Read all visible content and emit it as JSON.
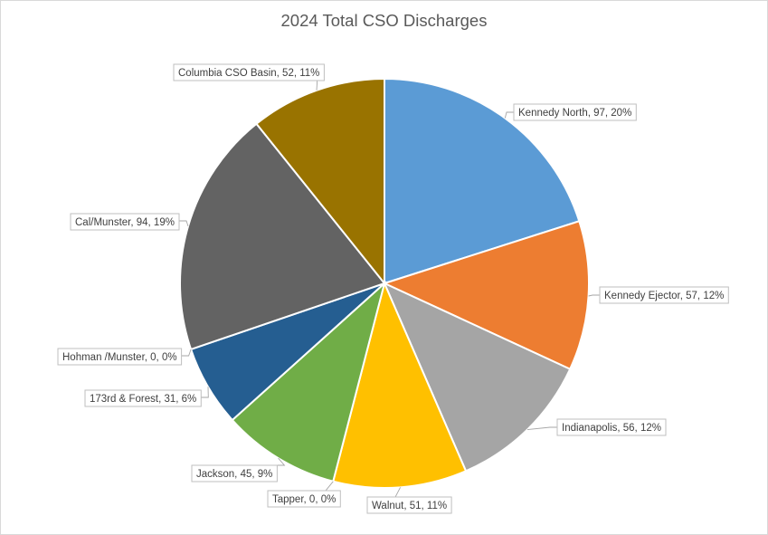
{
  "chart_data": {
    "type": "pie",
    "title": "2024 Total CSO Discharges",
    "start_angle_deg": 0,
    "direction": "clockwise",
    "slices": [
      {
        "name": "Kennedy North",
        "value": 97,
        "percent": "20%",
        "label": "Kennedy North, 97, 20%",
        "color": "#5B9BD5"
      },
      {
        "name": "Kennedy Ejector",
        "value": 57,
        "percent": "12%",
        "label": "Kennedy Ejector, 57, 12%",
        "color": "#ED7D31"
      },
      {
        "name": "Indianapolis",
        "value": 56,
        "percent": "12%",
        "label": "Indianapolis, 56, 12%",
        "color": "#A5A5A5"
      },
      {
        "name": "Walnut",
        "value": 51,
        "percent": "11%",
        "label": "Walnut, 51, 11%",
        "color": "#FFC000"
      },
      {
        "name": "Tapper",
        "value": 0,
        "percent": "0%",
        "label": "Tapper, 0, 0%",
        "color": "#4472C4"
      },
      {
        "name": "Jackson",
        "value": 45,
        "percent": "9%",
        "label": "Jackson, 45, 9%",
        "color": "#70AD47"
      },
      {
        "name": "173rd & Forest",
        "value": 31,
        "percent": "6%",
        "label": "173rd & Forest, 31, 6%",
        "color": "#255E91"
      },
      {
        "name": "Hohman /Munster",
        "value": 0,
        "percent": "0%",
        "label": "Hohman /Munster, 0, 0%",
        "color": "#9E480E"
      },
      {
        "name": "Cal/Munster",
        "value": 94,
        "percent": "19%",
        "label": "Cal/Munster, 94, 19%",
        "color": "#636363"
      },
      {
        "name": "Columbia CSO Basin",
        "value": 52,
        "percent": "11%",
        "label": "Columbia CSO Basin, 52, 11%",
        "color": "#997300"
      }
    ]
  }
}
